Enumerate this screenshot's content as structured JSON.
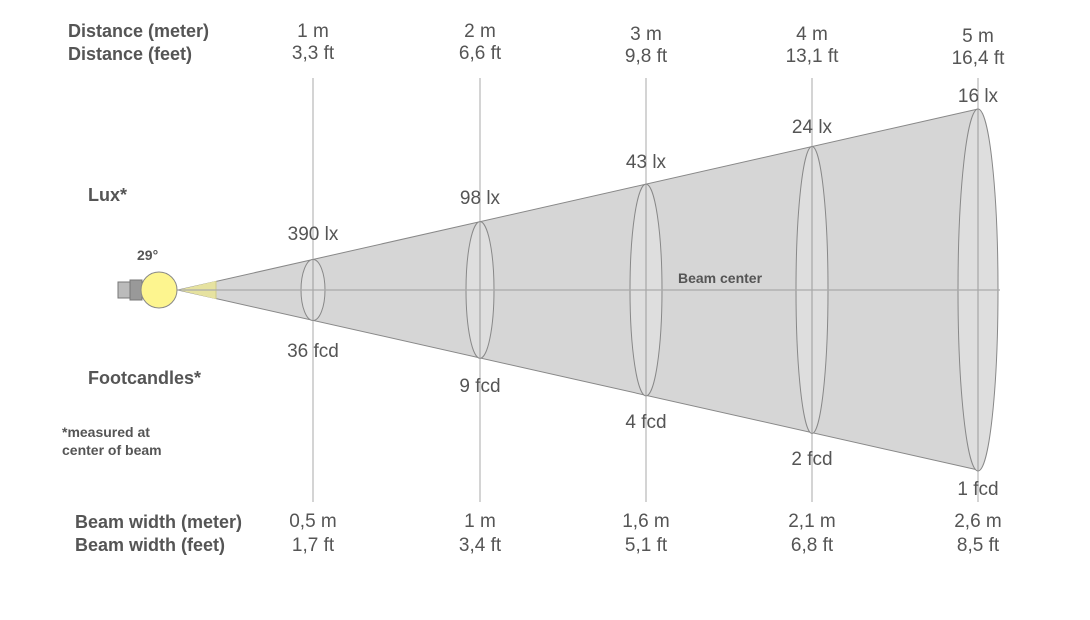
{
  "labels": {
    "distance_meter": "Distance (meter)",
    "distance_feet": "Distance (feet)",
    "lux": "Lux*",
    "footcandles": "Footcandles*",
    "note_line1": "*measured at",
    "note_line2": "center of beam",
    "beam_width_meter": "Beam width (meter)",
    "beam_width_feet": "Beam width (feet)",
    "beam_center": "Beam center",
    "beam_angle": "29°"
  },
  "colors": {
    "beam_fill": "#d6d6d6",
    "bulb": "#fdf58f",
    "near_beam": "#e6e2a0",
    "line": "#999999",
    "text": "#555555"
  },
  "columns": [
    {
      "distance_m": "1 m",
      "distance_ft": "3,3 ft",
      "lux": "390 lx",
      "fcd": "36 fcd",
      "width_m": "0,5 m",
      "width_ft": "1,7 ft"
    },
    {
      "distance_m": "2 m",
      "distance_ft": "6,6 ft",
      "lux": "98 lx",
      "fcd": "9 fcd",
      "width_m": "1 m",
      "width_ft": "3,4 ft"
    },
    {
      "distance_m": "3 m",
      "distance_ft": "9,8 ft",
      "lux": "43 lx",
      "fcd": "4 fcd",
      "width_m": "1,6 m",
      "width_ft": "5,1 ft"
    },
    {
      "distance_m": "4 m",
      "distance_ft": "13,1 ft",
      "lux": "24 lx",
      "fcd": "2 fcd",
      "width_m": "2,1 m",
      "width_ft": "6,8 ft"
    },
    {
      "distance_m": "5 m",
      "distance_ft": "16,4 ft",
      "lux": "16 lx",
      "fcd": "1 fcd",
      "width_m": "2,6 m",
      "width_ft": "8,5 ft"
    }
  ]
}
